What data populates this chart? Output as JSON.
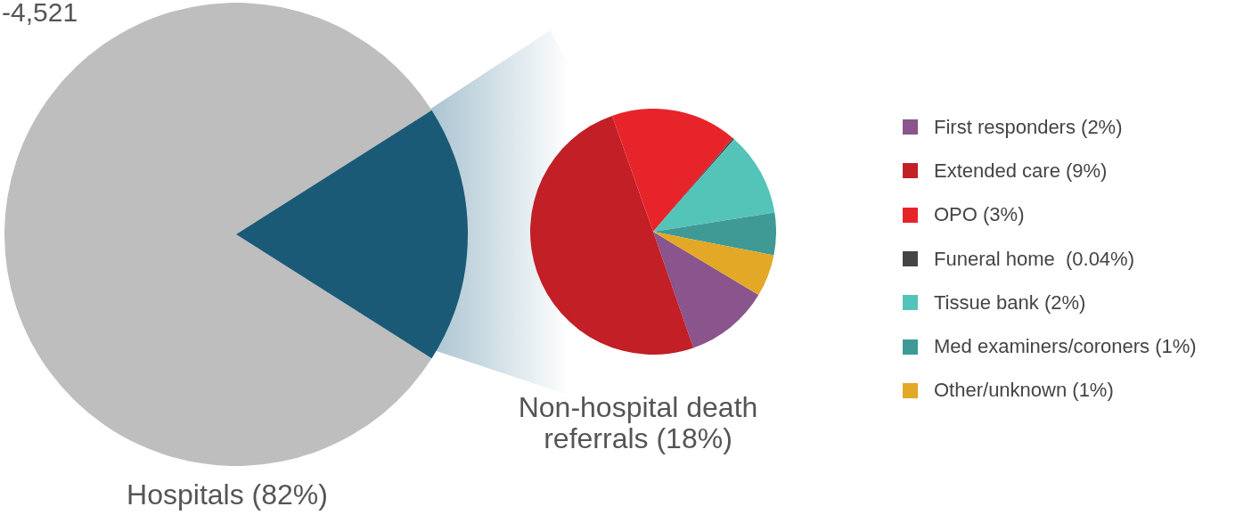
{
  "chart_data": [
    {
      "type": "pie",
      "categories": [
        "Hospitals (82%)",
        "Non-hospital death referrals (18%)"
      ],
      "values": [
        82,
        18
      ],
      "colors": [
        "#bebebe",
        "#1b5a76"
      ],
      "annotations": [
        "-4,521"
      ]
    },
    {
      "type": "pie",
      "categories": [
        "First responders (2%)",
        "Extended care (9%)",
        "OPO (3%)",
        "Funeral home  (0.04%)",
        "Tissue bank (2%)",
        "Med examiners/coroners (1%)",
        "Other/unknown (1%)"
      ],
      "values": [
        2,
        9,
        3,
        0.04,
        2,
        1,
        1
      ],
      "colors": [
        "#8a548c",
        "#c21f26",
        "#e8242b",
        "#444444",
        "#55c4b8",
        "#3f9a96",
        "#e2a826"
      ],
      "legend": "right"
    }
  ]
}
